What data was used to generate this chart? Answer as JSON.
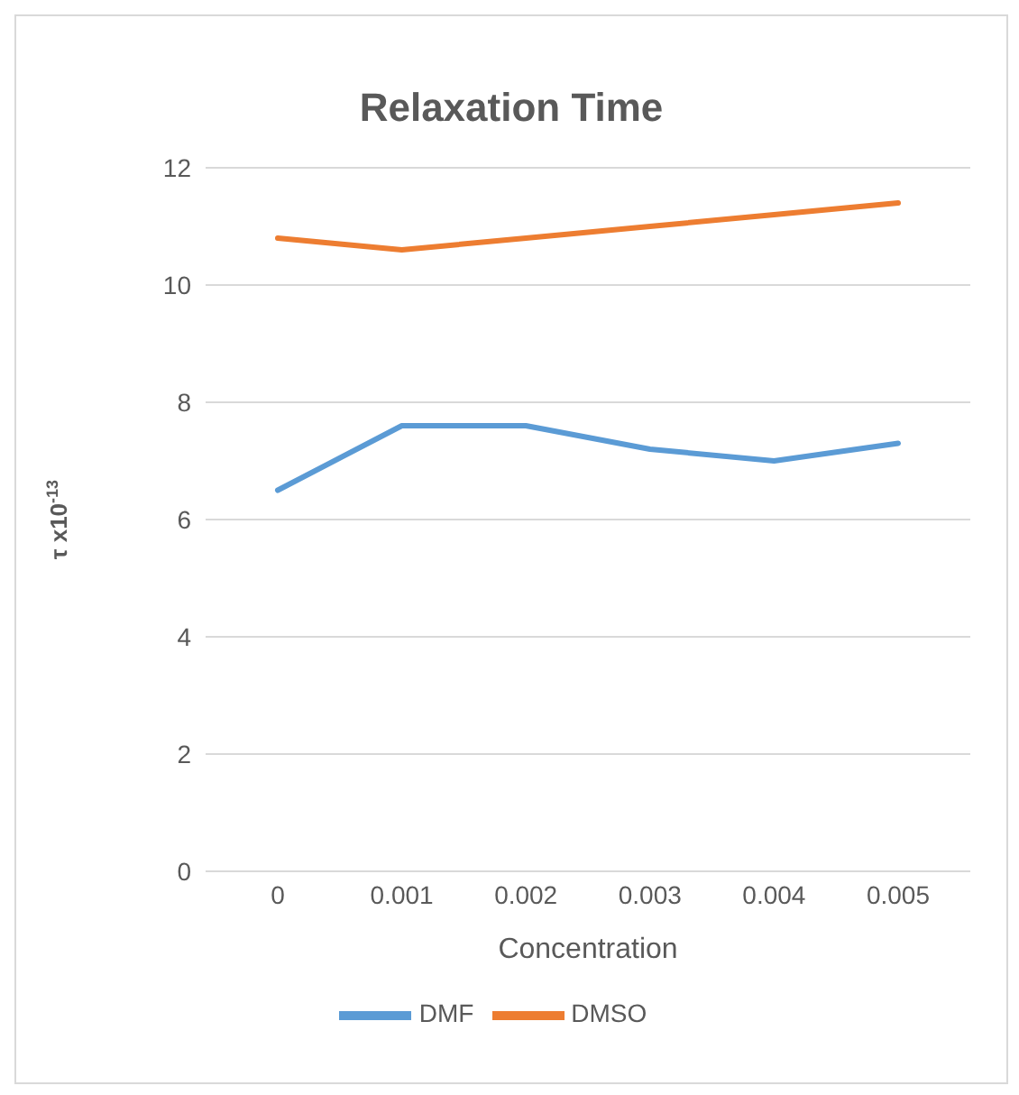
{
  "chart_data": {
    "type": "line",
    "title": "Relaxation Time",
    "xlabel": "Concentration",
    "ylabel": "τ x10$^{-13}$",
    "categories": [
      "0",
      "0.001",
      "0.002",
      "0.003",
      "0.004",
      "0.005"
    ],
    "series": [
      {
        "name": "DMF",
        "color": "#5b9bd5",
        "values": [
          6.5,
          7.6,
          7.6,
          7.2,
          7.0,
          7.3
        ]
      },
      {
        "name": "DMSO",
        "color": "#ed7d31",
        "values": [
          10.8,
          10.6,
          10.8,
          11.0,
          11.2,
          11.4
        ]
      }
    ],
    "ylim": [
      0,
      12
    ],
    "yticks": [
      0,
      2,
      4,
      6,
      8,
      10,
      12
    ],
    "grid": "y",
    "legend": "bottom",
    "marker": "none",
    "line_style": "solid"
  }
}
